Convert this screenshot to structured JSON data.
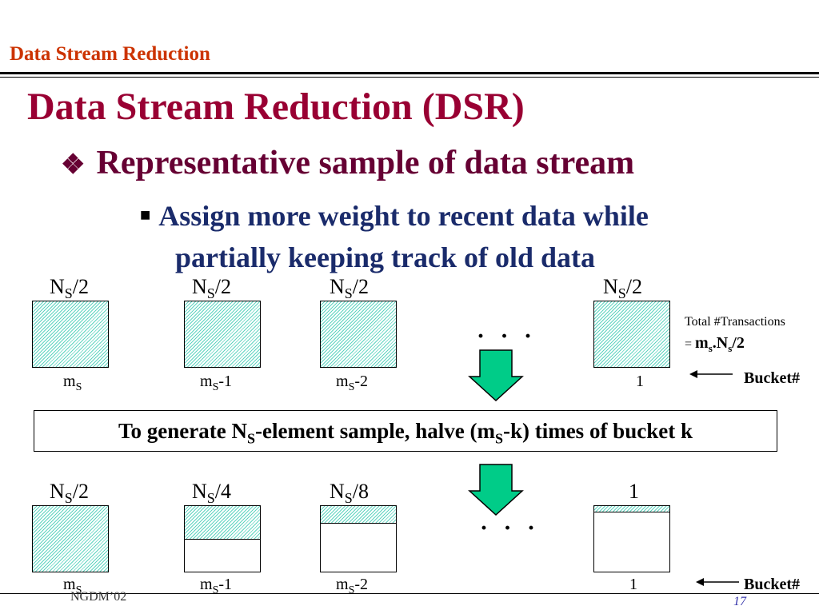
{
  "header": "Data Stream Reduction",
  "title": "Data Stream Reduction (DSR)",
  "bullet1": "Representative sample of data stream",
  "bullet1_icon": "diamond-cluster-icon",
  "bullet2_line1": "Assign more weight to recent data while",
  "bullet2_line2": "partially keeping track of old data",
  "top_buckets": [
    {
      "label_main": "N",
      "label_sub": "S",
      "label_rest": "/2",
      "fill": 1.0,
      "idx_main": "m",
      "idx_sub": "S",
      "idx_rest": ""
    },
    {
      "label_main": "N",
      "label_sub": "S",
      "label_rest": "/2",
      "fill": 1.0,
      "idx_main": "m",
      "idx_sub": "S",
      "idx_rest": "-1"
    },
    {
      "label_main": "N",
      "label_sub": "S",
      "label_rest": "/2",
      "fill": 1.0,
      "idx_main": "m",
      "idx_sub": "S",
      "idx_rest": "-2"
    },
    {
      "label_main": "N",
      "label_sub": "S",
      "label_rest": "/2",
      "fill": 1.0,
      "idx_main": "",
      "idx_sub": "",
      "idx_rest": "1"
    }
  ],
  "bottom_buckets": [
    {
      "label_main": "N",
      "label_sub": "S",
      "label_rest": "/2",
      "fill": 1.0,
      "idx_main": "m",
      "idx_sub": "S",
      "idx_rest": ""
    },
    {
      "label_main": "N",
      "label_sub": "S",
      "label_rest": "/4",
      "fill": 0.5,
      "idx_main": "m",
      "idx_sub": "S",
      "idx_rest": "-1"
    },
    {
      "label_main": "N",
      "label_sub": "S",
      "label_rest": "/8",
      "fill": 0.25,
      "idx_main": "m",
      "idx_sub": "S",
      "idx_rest": "-2"
    },
    {
      "label_main": "1",
      "label_sub": "",
      "label_rest": "",
      "fill": 0.08,
      "idx_main": "",
      "idx_sub": "",
      "idx_rest": "1"
    }
  ],
  "ellipsis": "· · ·",
  "total_note_line1": "Total #Transactions",
  "total_note_eq": "=",
  "total_note_formula_a": "m",
  "total_note_formula_sub1": "s",
  "total_note_formula_b": ".N",
  "total_note_formula_sub2": "s",
  "total_note_formula_c": "/2",
  "bucket_label": "Bucket#",
  "banner": {
    "a": "To generate N",
    "sub1": "S",
    "b": "-element sample, halve (m",
    "sub2": "S",
    "c": "-k) times of bucket k"
  },
  "footer_left": "NGDM’02",
  "footer_right": "17",
  "colors": {
    "hatch": "#5fd4c0",
    "arrow_fill": "#00cc88",
    "header": "#cc3300",
    "title": "#990033",
    "bullet1": "#660033",
    "bullet2": "#1a2b6b"
  }
}
